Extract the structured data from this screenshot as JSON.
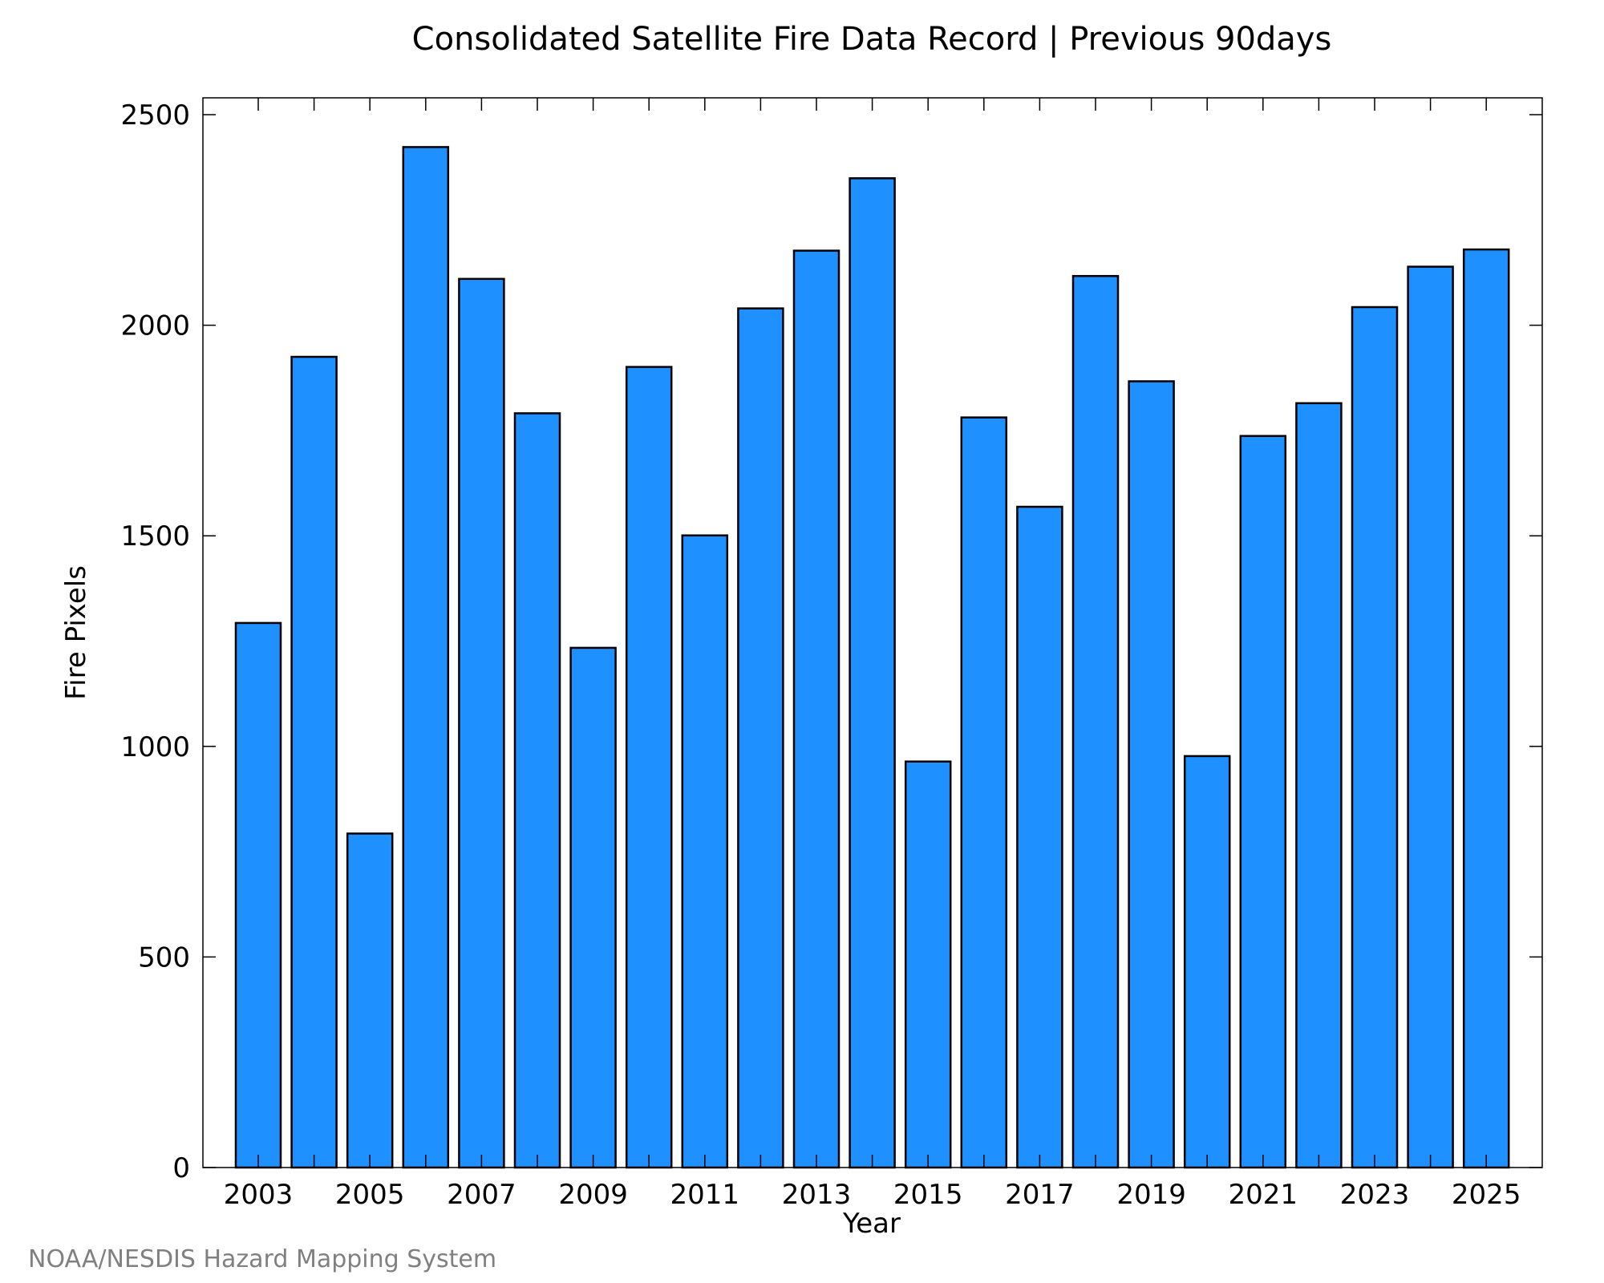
{
  "credit": "NOAA/NESDIS Hazard Mapping System",
  "colors": {
    "bar_fill": "#1e90ff",
    "bar_stroke": "#000000",
    "axis": "#000000",
    "credit_text": "#808080"
  },
  "chart_data": {
    "type": "bar",
    "title": "Consolidated Satellite Fire Data Record | Previous 90days",
    "xlabel": "Year",
    "ylabel": "Fire Pixels",
    "categories": [
      "2003",
      "2004",
      "2005",
      "2006",
      "2007",
      "2008",
      "2009",
      "2010",
      "2011",
      "2012",
      "2013",
      "2014",
      "2015",
      "2016",
      "2017",
      "2018",
      "2019",
      "2020",
      "2021",
      "2022",
      "2023",
      "2024",
      "2025"
    ],
    "values": [
      1293,
      1925,
      793,
      2423,
      2110,
      1791,
      1234,
      1901,
      1501,
      2040,
      2177,
      2349,
      964,
      1781,
      1569,
      2117,
      1867,
      977,
      1737,
      1815,
      2043,
      2139,
      2180
    ],
    "x_tick_labels": [
      "2003",
      "2005",
      "2007",
      "2009",
      "2011",
      "2013",
      "2015",
      "2017",
      "2019",
      "2021",
      "2023",
      "2025"
    ],
    "y_ticks": [
      0,
      500,
      1000,
      1500,
      2000,
      2500
    ],
    "ylim": [
      0,
      2540
    ],
    "grid": false,
    "legend": "none"
  }
}
